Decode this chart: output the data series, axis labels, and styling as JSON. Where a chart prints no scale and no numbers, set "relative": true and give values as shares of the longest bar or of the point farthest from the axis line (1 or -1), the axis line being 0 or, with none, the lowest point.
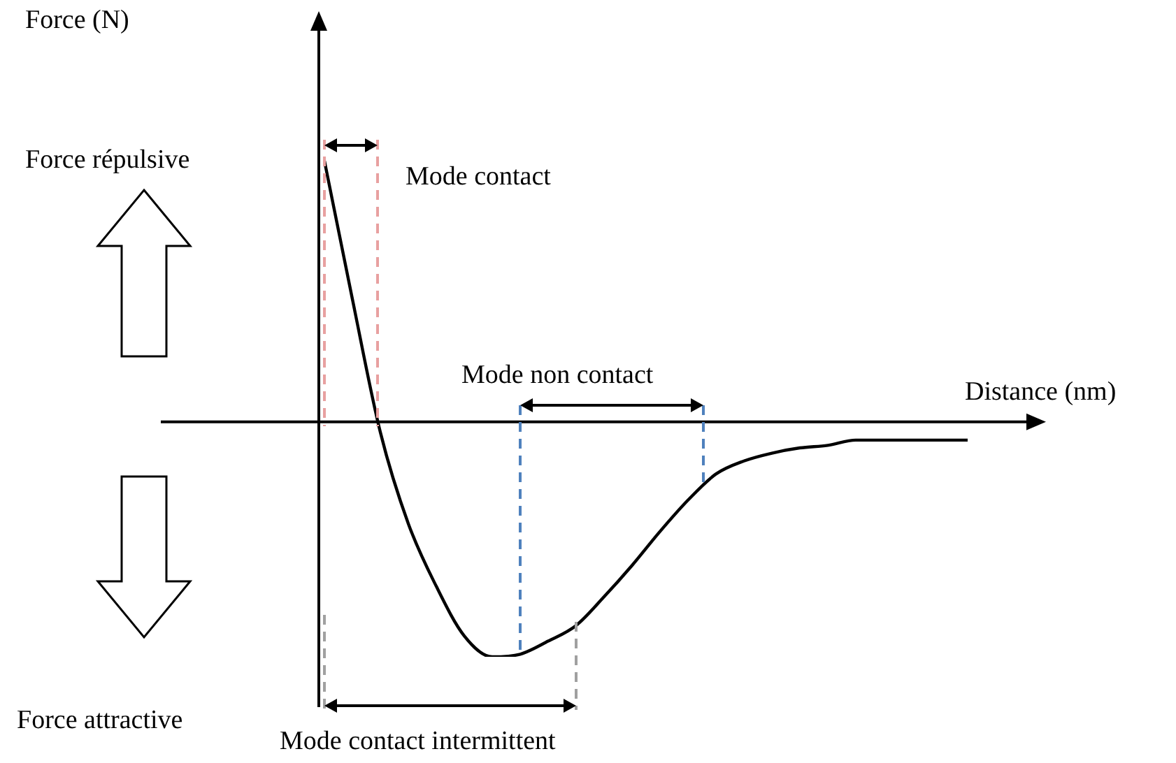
{
  "chart_data": {
    "type": "line",
    "relative": true,
    "xlabel": "Distance (nm)",
    "categories": [
      null,
      null,
      null,
      null,
      null,
      null,
      null,
      null,
      null,
      null,
      null,
      null,
      null,
      null,
      null,
      null,
      null,
      null,
      null,
      null,
      null,
      null,
      null,
      null
    ],
    "series": [
      {
        "color": "#000000",
        "values": [
          1.0,
          0.47,
          -0.04,
          -0.39,
          -0.63,
          -0.82,
          -0.9,
          -0.89,
          -0.84,
          -0.78,
          -0.67,
          -0.55,
          -0.42,
          -0.3,
          -0.2,
          -0.15,
          -0.12,
          -0.1,
          -0.09,
          -0.07,
          -0.07,
          -0.07,
          -0.07,
          -0.07
        ]
      }
    ],
    "annotations": [
      "Force (N)",
      "Force répulsive",
      "Force attractive",
      "Mode contact",
      "Mode non contact",
      "Mode contact intermittent"
    ],
    "legend": false,
    "marker": "none",
    "line_style": "solid"
  }
}
